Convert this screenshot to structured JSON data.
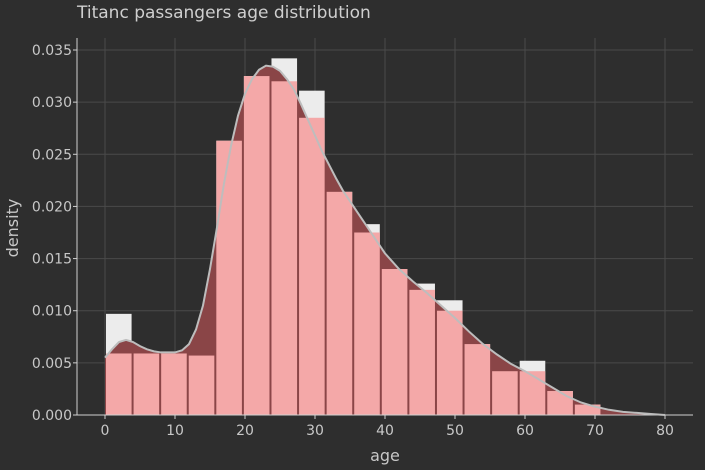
{
  "chart_data": {
    "type": "bar",
    "title": "Titanc passangers age distribution",
    "xlabel": "age",
    "ylabel": "density",
    "xlim": [
      0,
      80
    ],
    "ylim": [
      0,
      0.035
    ],
    "xticks": [
      0,
      10,
      20,
      30,
      40,
      50,
      60,
      70,
      80
    ],
    "yticks": [
      "0.000",
      "0.005",
      "0.010",
      "0.015",
      "0.020",
      "0.025",
      "0.030",
      "0.035"
    ],
    "grid": true,
    "bin_width": 3.94,
    "bins": [
      {
        "start": 0.0,
        "hist": 0.0097,
        "kde_bar": 0.0059
      },
      {
        "start": 3.94,
        "hist": 0.0059,
        "kde_bar": 0.0059
      },
      {
        "start": 7.88,
        "hist": 0.0059,
        "kde_bar": 0.0059
      },
      {
        "start": 11.82,
        "hist": 0.0057,
        "kde_bar": 0.0057
      },
      {
        "start": 15.76,
        "hist": 0.0263,
        "kde_bar": 0.0263
      },
      {
        "start": 19.7,
        "hist": 0.0325,
        "kde_bar": 0.0325
      },
      {
        "start": 23.64,
        "hist": 0.0342,
        "kde_bar": 0.032
      },
      {
        "start": 27.58,
        "hist": 0.0311,
        "kde_bar": 0.0285
      },
      {
        "start": 31.52,
        "hist": 0.0214,
        "kde_bar": 0.0214
      },
      {
        "start": 35.46,
        "hist": 0.0183,
        "kde_bar": 0.0175
      },
      {
        "start": 39.4,
        "hist": 0.014,
        "kde_bar": 0.014
      },
      {
        "start": 43.34,
        "hist": 0.0126,
        "kde_bar": 0.012
      },
      {
        "start": 47.28,
        "hist": 0.011,
        "kde_bar": 0.01
      },
      {
        "start": 51.22,
        "hist": 0.0068,
        "kde_bar": 0.0068
      },
      {
        "start": 55.16,
        "hist": 0.0042,
        "kde_bar": 0.0042
      },
      {
        "start": 59.1,
        "hist": 0.0052,
        "kde_bar": 0.0042
      },
      {
        "start": 63.04,
        "hist": 0.0023,
        "kde_bar": 0.0023
      },
      {
        "start": 66.98,
        "hist": 0.001,
        "kde_bar": 0.001
      },
      {
        "start": 70.92,
        "hist": 0.0,
        "kde_bar": 0.0
      },
      {
        "start": 74.86,
        "hist": 0.0,
        "kde_bar": 0.0
      }
    ],
    "kde": {
      "x": [
        0,
        1,
        2,
        3,
        4,
        5,
        6,
        7,
        8,
        9,
        10,
        11,
        12,
        13,
        14,
        15,
        16,
        17,
        18,
        19,
        20,
        21,
        22,
        23,
        24,
        25,
        26,
        27,
        28,
        29,
        30,
        31,
        32,
        33,
        34,
        35,
        36,
        37,
        38,
        39,
        40,
        42,
        44,
        46,
        48,
        50,
        52,
        54,
        56,
        58,
        60,
        62,
        64,
        66,
        68,
        70,
        72,
        74,
        76,
        78,
        80
      ],
      "y": [
        0.0055,
        0.0063,
        0.007,
        0.0072,
        0.007,
        0.0066,
        0.0063,
        0.0061,
        0.006,
        0.006,
        0.006,
        0.0062,
        0.0068,
        0.0082,
        0.0105,
        0.014,
        0.018,
        0.0222,
        0.0258,
        0.0287,
        0.0308,
        0.0322,
        0.0331,
        0.0335,
        0.0334,
        0.033,
        0.0322,
        0.0312,
        0.0298,
        0.0283,
        0.0268,
        0.0253,
        0.024,
        0.0227,
        0.0215,
        0.0205,
        0.0195,
        0.0185,
        0.0175,
        0.0165,
        0.0155,
        0.014,
        0.0128,
        0.0117,
        0.0105,
        0.0093,
        0.008,
        0.0068,
        0.0058,
        0.0049,
        0.0042,
        0.0034,
        0.0026,
        0.0018,
        0.0012,
        0.0008,
        0.0005,
        0.0003,
        0.0002,
        0.0001,
        0.0
      ]
    },
    "colors": {
      "background": "#2e2e2e",
      "hist": "#ececec",
      "kde_fill": "#8a4547",
      "kde_line": "#bdbdbd",
      "kde_bar": "#f4a8a8"
    }
  }
}
